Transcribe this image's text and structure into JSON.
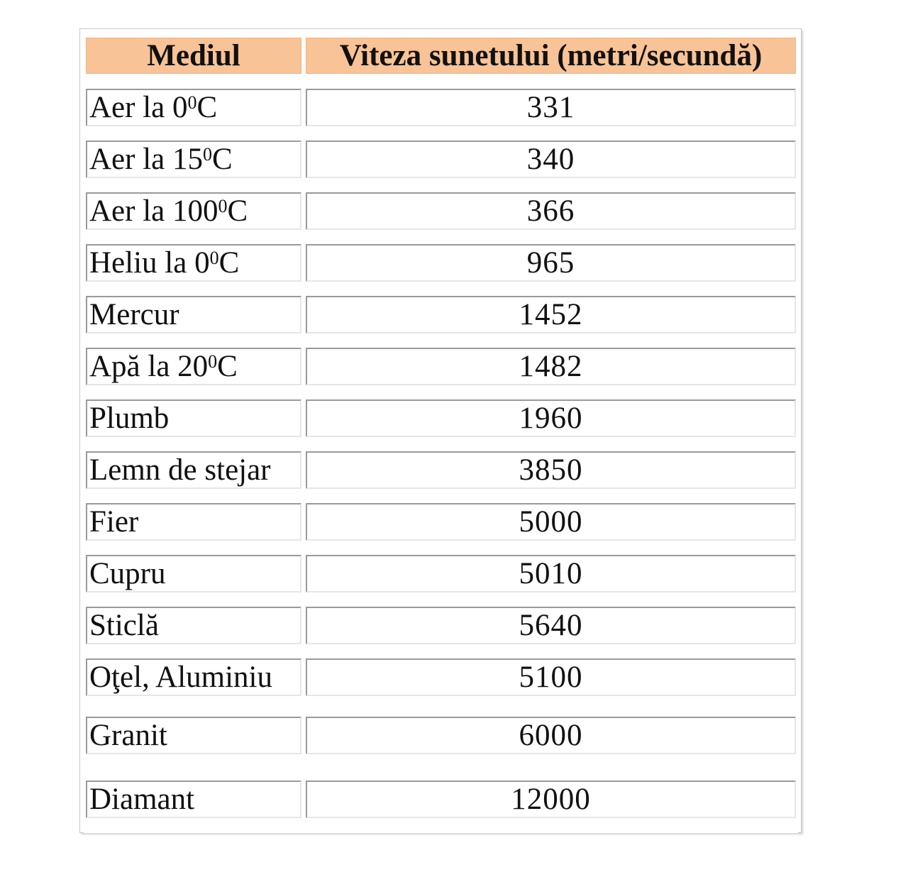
{
  "table": {
    "headers": {
      "medium": "Mediul",
      "speed": "Viteza sunetului (metri/secundă)"
    },
    "rows": [
      {
        "name": "Aer la 0",
        "sup": "0",
        "suffix": "C",
        "value": "331"
      },
      {
        "name": "Aer la 15",
        "sup": "0",
        "suffix": "C",
        "value": "340"
      },
      {
        "name": "Aer la 100",
        "sup": "0",
        "suffix": "C",
        "value": "366"
      },
      {
        "name": "Heliu la 0",
        "sup": "0",
        "suffix": "C",
        "value": "965"
      },
      {
        "name": "Mercur",
        "sup": "",
        "suffix": "",
        "value": "1452"
      },
      {
        "name": "Apă la 20",
        "sup": "0",
        "suffix": "C",
        "value": "1482"
      },
      {
        "name": "Plumb",
        "sup": "",
        "suffix": "",
        "value": "1960"
      },
      {
        "name": "Lemn de stejar",
        "sup": "",
        "suffix": "",
        "value": "3850"
      },
      {
        "name": "Fier",
        "sup": "",
        "suffix": "",
        "value": "5000"
      },
      {
        "name": "Cupru",
        "sup": "",
        "suffix": "",
        "value": "5010"
      },
      {
        "name": "Sticlă",
        "sup": "",
        "suffix": "",
        "value": "5640"
      },
      {
        "name": "Oţel, Aluminiu",
        "sup": "",
        "suffix": "",
        "value": "5100"
      },
      {
        "name": "Granit",
        "sup": "",
        "suffix": "",
        "value": "6000"
      },
      {
        "name": "Diamant",
        "sup": "",
        "suffix": "",
        "value": "12000"
      }
    ]
  }
}
